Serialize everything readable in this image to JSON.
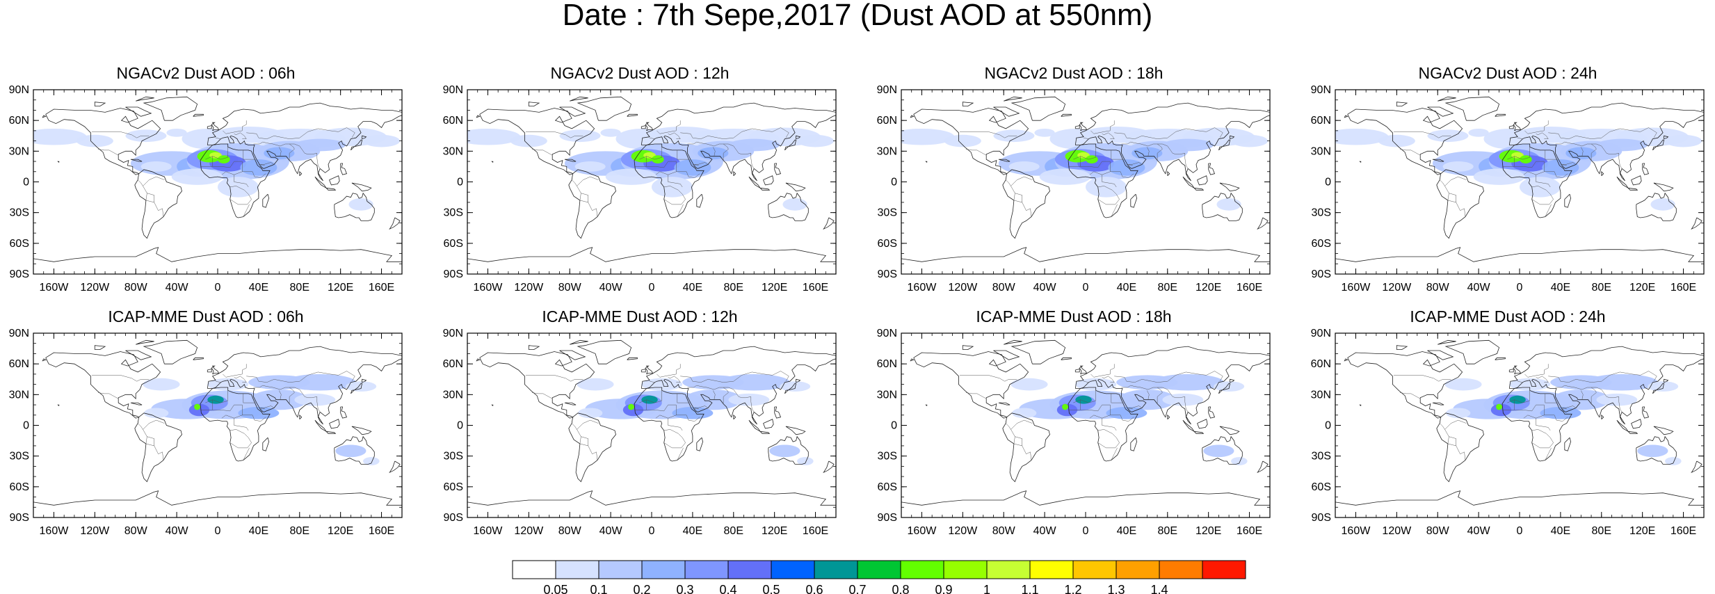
{
  "main_title": "Date : 7th Sepe,2017 (Dust AOD at 550nm)",
  "lat_labels": [
    "90N",
    "60N",
    "30N",
    "0",
    "30S",
    "60S",
    "90S"
  ],
  "lon_labels": [
    "160W",
    "120W",
    "80W",
    "40W",
    "0",
    "40E",
    "80E",
    "120E",
    "160E"
  ],
  "panels": [
    {
      "id": "ngac-06",
      "title": "NGACv2 Dust AOD : 06h",
      "model": "ngac"
    },
    {
      "id": "ngac-12",
      "title": "NGACv2 Dust AOD : 12h",
      "model": "ngac"
    },
    {
      "id": "ngac-18",
      "title": "NGACv2 Dust AOD : 18h",
      "model": "ngac"
    },
    {
      "id": "ngac-24",
      "title": "NGACv2 Dust AOD : 24h",
      "model": "ngac"
    },
    {
      "id": "icap-06",
      "title": "ICAP-MME Dust AOD : 06h",
      "model": "icap"
    },
    {
      "id": "icap-12",
      "title": "ICAP-MME Dust AOD : 12h",
      "model": "icap"
    },
    {
      "id": "icap-18",
      "title": "ICAP-MME Dust AOD : 18h",
      "model": "icap"
    },
    {
      "id": "icap-24",
      "title": "ICAP-MME Dust AOD : 24h",
      "model": "icap"
    }
  ],
  "colorbar": {
    "colors": [
      "#ffffff",
      "#d6e2ff",
      "#b5c9ff",
      "#8fb2ff",
      "#7f96ff",
      "#6370f8",
      "#0063ff",
      "#009696",
      "#00c633",
      "#63ff00",
      "#96ff00",
      "#c6ff33",
      "#ffff00",
      "#ffc600",
      "#ffa000",
      "#ff7c00",
      "#ff1900"
    ],
    "labels": [
      "0.05",
      "0.1",
      "0.2",
      "0.3",
      "0.4",
      "0.5",
      "0.6",
      "0.7",
      "0.8",
      "0.9",
      "1",
      "1.1",
      "1.2",
      "1.3",
      "1.4"
    ]
  }
}
